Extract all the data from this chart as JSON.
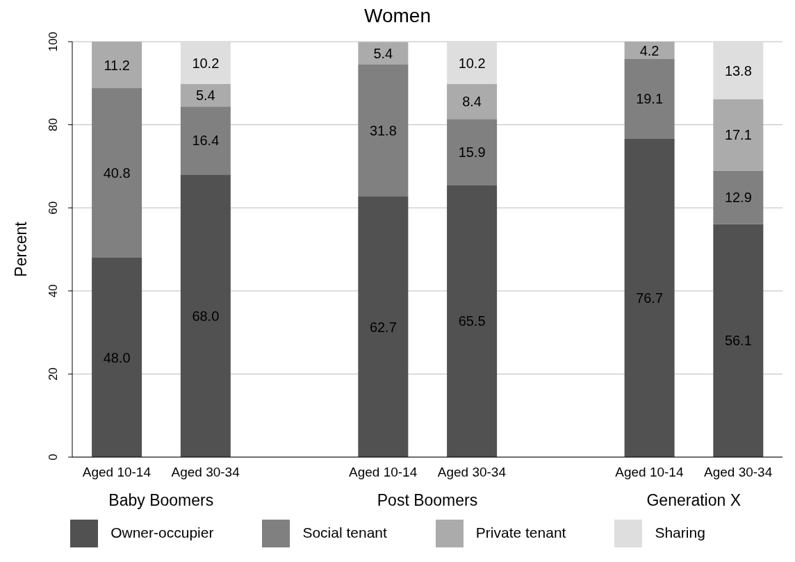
{
  "chart_data": {
    "type": "bar",
    "title": "Women",
    "ylabel": "Percent",
    "stacked": true,
    "grid": "y",
    "legend": "bottom",
    "categories": [
      "Aged 10-14",
      "Aged 30-34",
      null,
      "Aged 10-14",
      "Aged 30-34",
      null,
      "Aged 10-14",
      "Aged 30-34"
    ],
    "annotations": [
      "Baby Boomers",
      "Post Boomers",
      "Generation X"
    ],
    "ylim": [
      0,
      100
    ],
    "yticks": [
      0,
      20,
      40,
      60,
      80,
      100
    ],
    "series": [
      {
        "name": "Owner-occupier",
        "color": "#515151",
        "values": [
          48.0,
          68.0,
          null,
          62.7,
          65.5,
          null,
          76.7,
          56.1
        ],
        "value_labels": [
          "48.0",
          "68.0",
          null,
          "62.7",
          "65.5",
          null,
          "76.7",
          "56.1"
        ]
      },
      {
        "name": "Social tenant",
        "color": "#808080",
        "values": [
          40.8,
          16.4,
          null,
          31.8,
          15.9,
          null,
          19.1,
          12.9
        ],
        "value_labels": [
          "40.8",
          "16.4",
          null,
          "31.8",
          "15.9",
          null,
          "19.1",
          "12.9"
        ]
      },
      {
        "name": "Private tenant",
        "color": "#ababab",
        "values": [
          11.2,
          5.4,
          null,
          5.4,
          8.4,
          null,
          4.2,
          17.1
        ],
        "value_labels": [
          "11.2",
          "5.4",
          null,
          "5.4",
          "8.4",
          null,
          "4.2",
          "17.1"
        ]
      },
      {
        "name": "Sharing",
        "color": "#dedede",
        "values": [
          null,
          10.2,
          null,
          null,
          10.2,
          null,
          null,
          13.8
        ],
        "value_labels": [
          null,
          "10.2",
          null,
          null,
          "10.2",
          null,
          null,
          "13.8"
        ]
      }
    ]
  }
}
